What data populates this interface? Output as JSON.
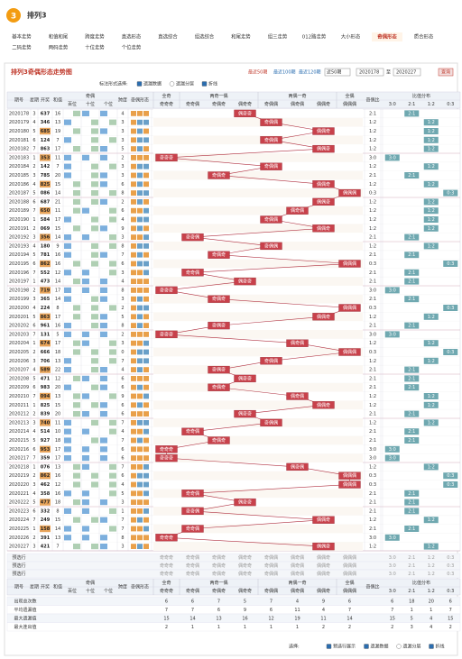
{
  "header": {
    "logo": "3",
    "title": "排列3"
  },
  "nav": [
    {
      "label": "基本走势"
    },
    {
      "label": "和值和尾"
    },
    {
      "label": "跨度走势"
    },
    {
      "label": "直选形态"
    },
    {
      "label": "直选综合"
    },
    {
      "label": "组选综合"
    },
    {
      "label": "和尾走势"
    },
    {
      "label": "组三走势"
    },
    {
      "label": "012路走势"
    },
    {
      "label": "大小形态"
    },
    {
      "label": "奇偶形态",
      "active": true
    },
    {
      "label": "质合形态"
    },
    {
      "label": "二码走势"
    },
    {
      "label": "两码走势"
    },
    {
      "label": "十位走势"
    },
    {
      "label": "个位走势"
    }
  ],
  "panel": {
    "title": "排列3奇偶形态走势图",
    "quick": [
      "最近50期",
      "最近100期",
      "最近120期"
    ],
    "select": "近50期",
    "from": "2020178",
    "to_label": "至",
    "to": "2020227",
    "query": "查询"
  },
  "options": {
    "label": "标注形式选择:",
    "items": [
      {
        "label": "遗漏数据",
        "checked": true
      },
      {
        "label": "遗漏分层",
        "checked": false
      },
      {
        "label": "折线",
        "checked": true
      }
    ]
  },
  "table": {
    "headers": {
      "period": "期号",
      "week": "星期",
      "number": "开奖",
      "sum": "和值",
      "parity": "奇偶",
      "positions": [
        "百位",
        "十位",
        "个位"
      ],
      "span": "跨度",
      "shape": "奇偶形态",
      "ratio": "奇偶比",
      "distribution": "比值分布"
    },
    "pattern_groups": [
      {
        "label": "全奇",
        "patterns": [
          "奇奇奇"
        ]
      },
      {
        "label": "两奇一偶",
        "patterns": [
          "奇奇偶",
          "奇偶奇",
          "偶奇奇"
        ]
      },
      {
        "label": "两偶一奇",
        "patterns": [
          "奇偶偶",
          "偶奇偶",
          "偶偶奇"
        ]
      },
      {
        "label": "全偶",
        "patterns": [
          "偶偶偶"
        ]
      }
    ],
    "ratio_columns": [
      "3:0",
      "2:1",
      "1:2",
      "0:3"
    ],
    "rows": [
      [
        "2020178",
        "3",
        "637",
        "16",
        "4",
        "偶奇奇",
        "2:1"
      ],
      [
        "2020179",
        "4",
        "346",
        "13",
        "3",
        "奇偶偶",
        "1:2"
      ],
      [
        "2020180",
        "5",
        "685",
        "19",
        "3",
        "偶偶奇",
        "1:2"
      ],
      [
        "2020181",
        "6",
        "124",
        "7",
        "3",
        "奇偶偶",
        "1:2"
      ],
      [
        "2020182",
        "7",
        "863",
        "17",
        "5",
        "偶偶奇",
        "1:2"
      ],
      [
        "2020183",
        "1",
        "353",
        "11",
        "2",
        "奇奇奇",
        "3:0"
      ],
      [
        "2020184",
        "2",
        "142",
        "7",
        "3",
        "奇偶偶",
        "1:2"
      ],
      [
        "2020185",
        "3",
        "785",
        "20",
        "3",
        "奇偶奇",
        "2:1"
      ],
      [
        "2020186",
        "4",
        "825",
        "15",
        "6",
        "偶偶奇",
        "1:2"
      ],
      [
        "2020187",
        "5",
        "086",
        "14",
        "8",
        "偶偶偶",
        "0:3"
      ],
      [
        "2020188",
        "6",
        "687",
        "21",
        "2",
        "偶偶奇",
        "1:2"
      ],
      [
        "2020189",
        "7",
        "650",
        "11",
        "6",
        "偶奇偶",
        "1:2"
      ],
      [
        "2020190",
        "1",
        "584",
        "17",
        "4",
        "奇偶偶",
        "1:2"
      ],
      [
        "2020191",
        "2",
        "069",
        "15",
        "9",
        "偶偶奇",
        "1:2"
      ],
      [
        "2020192",
        "3",
        "356",
        "14",
        "3",
        "奇奇偶",
        "2:1"
      ],
      [
        "2020193",
        "4",
        "180",
        "9",
        "8",
        "奇偶偶",
        "1:2"
      ],
      [
        "2020194",
        "5",
        "781",
        "16",
        "7",
        "奇偶奇",
        "2:1"
      ],
      [
        "2020195",
        "6",
        "862",
        "16",
        "6",
        "偶偶偶",
        "0:3"
      ],
      [
        "2020196",
        "7",
        "552",
        "12",
        "3",
        "奇奇偶",
        "2:1"
      ],
      [
        "2020197",
        "1",
        "473",
        "14",
        "4",
        "偶奇奇",
        "2:1"
      ],
      [
        "2020198",
        "2",
        "719",
        "17",
        "8",
        "奇奇奇",
        "3:0"
      ],
      [
        "2020199",
        "3",
        "365",
        "14",
        "3",
        "奇偶奇",
        "2:1"
      ],
      [
        "2020200",
        "4",
        "224",
        "8",
        "2",
        "偶偶偶",
        "0:3"
      ],
      [
        "2020201",
        "5",
        "863",
        "17",
        "5",
        "偶偶奇",
        "1:2"
      ],
      [
        "2020202",
        "6",
        "961",
        "16",
        "8",
        "奇偶奇",
        "2:1"
      ],
      [
        "2020203",
        "7",
        "131",
        "5",
        "2",
        "奇奇奇",
        "3:0"
      ],
      [
        "2020204",
        "1",
        "674",
        "17",
        "3",
        "偶奇偶",
        "1:2"
      ],
      [
        "2020205",
        "2",
        "666",
        "18",
        "0",
        "偶偶偶",
        "0:3"
      ],
      [
        "2020206",
        "3",
        "706",
        "13",
        "7",
        "奇偶偶",
        "1:2"
      ],
      [
        "2020207",
        "4",
        "589",
        "22",
        "4",
        "奇偶奇",
        "2:1"
      ],
      [
        "2020208",
        "5",
        "471",
        "12",
        "6",
        "偶奇奇",
        "2:1"
      ],
      [
        "2020209",
        "6",
        "983",
        "20",
        "6",
        "奇偶奇",
        "2:1"
      ],
      [
        "2020210",
        "7",
        "094",
        "13",
        "9",
        "偶奇偶",
        "1:2"
      ],
      [
        "2020211",
        "1",
        "825",
        "15",
        "6",
        "偶偶奇",
        "1:2"
      ],
      [
        "2020212",
        "2",
        "839",
        "20",
        "6",
        "偶奇奇",
        "2:1"
      ],
      [
        "2020213",
        "3",
        "740",
        "11",
        "7",
        "奇偶偶",
        "1:2"
      ],
      [
        "2020214",
        "4",
        "514",
        "10",
        "4",
        "奇奇偶",
        "2:1"
      ],
      [
        "2020215",
        "5",
        "927",
        "18",
        "7",
        "奇偶奇",
        "2:1"
      ],
      [
        "2020216",
        "6",
        "953",
        "17",
        "6",
        "奇奇奇",
        "3:0"
      ],
      [
        "2020217",
        "7",
        "359",
        "17",
        "6",
        "奇奇奇",
        "3:0"
      ],
      [
        "2020218",
        "1",
        "076",
        "13",
        "7",
        "偶奇偶",
        "1:2"
      ],
      [
        "2020219",
        "2",
        "862",
        "16",
        "6",
        "偶偶偶",
        "0:3"
      ],
      [
        "2020220",
        "3",
        "462",
        "12",
        "4",
        "偶偶偶",
        "0:3"
      ],
      [
        "2020221",
        "4",
        "358",
        "16",
        "5",
        "奇奇偶",
        "2:1"
      ],
      [
        "2020222",
        "5",
        "477",
        "18",
        "3",
        "偶奇奇",
        "2:1"
      ],
      [
        "2020223",
        "6",
        "332",
        "8",
        "1",
        "奇奇偶",
        "2:1"
      ],
      [
        "2020224",
        "7",
        "249",
        "15",
        "7",
        "偶偶奇",
        "1:2"
      ],
      [
        "2020225",
        "1",
        "158",
        "14",
        "7",
        "奇奇偶",
        "2:1"
      ],
      [
        "2020226",
        "2",
        "391",
        "13",
        "8",
        "奇奇奇",
        "3:0"
      ],
      [
        "2020227",
        "3",
        "421",
        "7",
        "3",
        "偶偶奇",
        "1:2"
      ]
    ],
    "preselect": [
      "预选行",
      "预选行",
      "预选行"
    ],
    "stats": [
      {
        "label": "出现总次数",
        "patterns": [
          6,
          6,
          7,
          5,
          7,
          4,
          9,
          6
        ],
        "ratios": [
          6,
          18,
          20,
          6
        ]
      },
      {
        "label": "平均遗漏值",
        "patterns": [
          7,
          7,
          6,
          9,
          6,
          11,
          4,
          7
        ],
        "ratios": [
          7,
          1,
          1,
          7
        ]
      },
      {
        "label": "最大遗漏值",
        "patterns": [
          15,
          14,
          13,
          16,
          12,
          19,
          11,
          14
        ],
        "ratios": [
          15,
          5,
          4,
          15
        ]
      },
      {
        "label": "最大连出值",
        "patterns": [
          2,
          1,
          1,
          1,
          1,
          1,
          2,
          2
        ],
        "ratios": [
          2,
          3,
          4,
          2
        ]
      }
    ]
  },
  "footer": {
    "label": "选择:",
    "items": [
      {
        "label": "预选行展示",
        "checked": true
      },
      {
        "label": "遗漏数据",
        "checked": true
      },
      {
        "label": "遗漏分层",
        "checked": false
      },
      {
        "label": "折线",
        "checked": true
      }
    ]
  }
}
